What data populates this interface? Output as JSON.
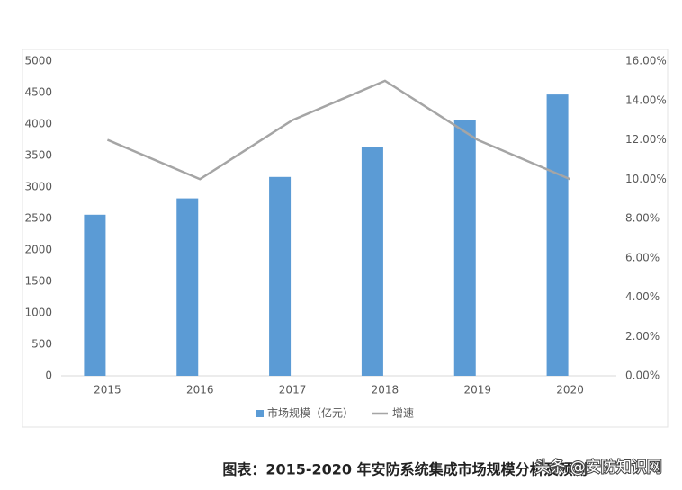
{
  "chart_data": {
    "type": "bar-line",
    "caption": "图表：2015-2020 年安防系统集成市场规模分析及预测",
    "watermark": "头条 @安防知识网",
    "categories": [
      "2015",
      "2016",
      "2017",
      "2018",
      "2019",
      "2020"
    ],
    "series": [
      {
        "name": "市场规模（亿元）",
        "color": "#5b9bd5",
        "type": "bar",
        "values": [
          2560,
          2820,
          3160,
          3630,
          4070,
          4470
        ]
      },
      {
        "name": "增速",
        "color": "#a5a5a5",
        "type": "line",
        "axis": "y2",
        "values": [
          12,
          10,
          13,
          15,
          12,
          10
        ]
      }
    ],
    "ylim": [
      0,
      5000
    ],
    "yticks": [
      0,
      500,
      1000,
      1500,
      2000,
      2500,
      3000,
      3500,
      4000,
      4500,
      5000
    ],
    "y2lim": [
      0,
      16
    ],
    "y2ticks": [
      {
        "value": 0,
        "label": "0.00%"
      },
      {
        "value": 2,
        "label": "2.00%"
      },
      {
        "value": 4,
        "label": "4.00%"
      },
      {
        "value": 6,
        "label": "6.00%"
      },
      {
        "value": 8,
        "label": "8.00%"
      },
      {
        "value": 10,
        "label": "10.00%"
      },
      {
        "value": 12,
        "label": "12.00%"
      },
      {
        "value": 14,
        "label": "14.00%"
      },
      {
        "value": 16,
        "label": "16.00%"
      }
    ],
    "legend": "bottom"
  }
}
